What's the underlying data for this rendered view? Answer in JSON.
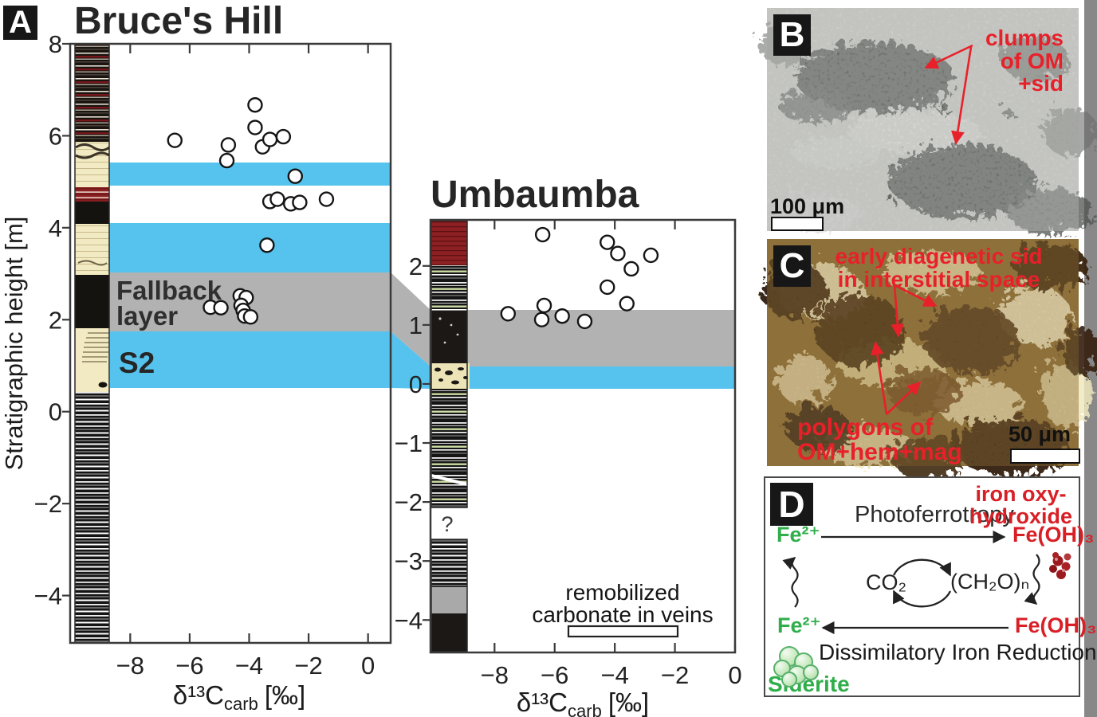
{
  "panel_a": {
    "label": "A",
    "ylabel": "Stratigraphic height [m]",
    "xlabel": {
      "main": "δ¹³C",
      "sub": "carb",
      "unit": "[‰]"
    },
    "bruces_hill": {
      "title": "Bruce's Hill",
      "x_ticks": [
        "−8",
        "−6",
        "−4",
        "−2",
        "0"
      ],
      "y_ticks": [
        "8",
        "6",
        "4",
        "2",
        "0",
        "−2",
        "−4"
      ],
      "fallback_line1": "Fallback",
      "fallback_line2": "layer",
      "s2": "S2"
    },
    "umbaumba": {
      "title": "Umbaumba",
      "x_ticks": [
        "−8",
        "−6",
        "−4",
        "−2",
        "0"
      ],
      "y_ticks": [
        "2",
        "1",
        "0",
        "−1",
        "−2",
        "−3",
        "−4"
      ],
      "question_mark": "?",
      "legend_line1": "remobilized",
      "legend_line2": "carbonate in veins"
    },
    "colors": {
      "band_blue": "#55c3ee",
      "band_gray": "#b2b2b2",
      "cream": "#f1eac2",
      "maroon": "#8c2023",
      "column_black": "#1b1815",
      "green_stripe": "#ccdca4"
    }
  },
  "chart_data": [
    {
      "type": "scatter",
      "title": "Bruce's Hill",
      "xlabel": "δ13C_carb [‰]",
      "ylabel": "Stratigraphic height [m]",
      "xlim": [
        -10.02,
        0.76
      ],
      "ylim": [
        -5.03,
        8
      ],
      "x_ticks": [
        -8,
        -6,
        -4,
        -2,
        0
      ],
      "y_ticks": [
        8,
        6,
        4,
        2,
        0,
        -2,
        -4
      ],
      "points": [
        [
          -3.8,
          6.67
        ],
        [
          -3.8,
          6.18
        ],
        [
          -6.5,
          5.9
        ],
        [
          -4.7,
          5.8
        ],
        [
          -4.75,
          5.46
        ],
        [
          -3.55,
          5.76
        ],
        [
          -3.3,
          5.92
        ],
        [
          -2.85,
          5.98
        ],
        [
          -2.45,
          5.12
        ],
        [
          -3.3,
          4.57
        ],
        [
          -3.05,
          4.62
        ],
        [
          -2.6,
          4.52
        ],
        [
          -2.3,
          4.55
        ],
        [
          -1.4,
          4.62
        ],
        [
          -3.4,
          3.62
        ],
        [
          -5.3,
          2.27
        ],
        [
          -4.95,
          2.26
        ],
        [
          -4.3,
          2.52
        ],
        [
          -4.1,
          2.48
        ],
        [
          -4.27,
          2.31
        ],
        [
          -4.2,
          2.2
        ],
        [
          -4.15,
          2.08
        ],
        [
          -3.95,
          2.06
        ]
      ],
      "bands": [
        {
          "name": "blue",
          "y_from": 5.42,
          "y_to": 4.92
        },
        {
          "name": "blue",
          "y_from": 4.1,
          "y_to": 3.03
        },
        {
          "name": "gray-fallback-layer",
          "y_from": 3.03,
          "y_to": 1.74
        },
        {
          "name": "blue-S2",
          "y_from": 1.74,
          "y_to": 0.52
        }
      ]
    },
    {
      "type": "scatter",
      "title": "Umbaumba",
      "xlabel": "δ13C_carb [‰]",
      "xlim": [
        -10.13,
        0
      ],
      "ylim": [
        -4.55,
        2.78
      ],
      "x_ticks": [
        -8,
        -6,
        -4,
        -2,
        0
      ],
      "y_ticks": [
        2,
        1,
        0,
        -1,
        -2,
        -3,
        -4
      ],
      "points": [
        [
          -6.4,
          2.53
        ],
        [
          -4.25,
          2.4
        ],
        [
          -3.9,
          2.21
        ],
        [
          -2.8,
          2.18
        ],
        [
          -3.45,
          1.95
        ],
        [
          -4.25,
          1.64
        ],
        [
          -3.6,
          1.36
        ],
        [
          -7.55,
          1.19
        ],
        [
          -6.35,
          1.33
        ],
        [
          -6.43,
          1.09
        ],
        [
          -5.75,
          1.15
        ],
        [
          -5.0,
          1.06
        ]
      ],
      "bands": [
        {
          "name": "gray-fallback-layer",
          "y_from": 1.25,
          "y_to": 0.3
        },
        {
          "name": "blue",
          "y_from": 0.3,
          "y_to": -0.08
        }
      ],
      "legend_box_range": {
        "x_from": -5.55,
        "x_to": -1.9,
        "y": -4.1
      }
    }
  ],
  "panel_b": {
    "label": "B",
    "annotation_lines": [
      "clumps",
      "of OM",
      "+sid"
    ],
    "scale_bar": "100 μm",
    "annotation_color": "#e8202a"
  },
  "panel_c": {
    "label": "C",
    "annotation_top": [
      "early diagenetic sid",
      "in interstitial space"
    ],
    "annotation_bottom": [
      "polygons of",
      "OM+hem+mag"
    ],
    "scale_bar": "50 μm",
    "annotation_color": "#e8202a"
  },
  "panel_d": {
    "label": "D",
    "top_process": "Photoferrotropy",
    "bottom_process": "Dissimilatory Iron Reduction",
    "iron_oxy_line1": "iron oxy-",
    "iron_oxy_line2": "hydroxide",
    "fe2_top": "Fe²⁺",
    "fe2_bottom": "Fe²⁺",
    "feoh3_top": "Fe(OH)₃",
    "feoh3_bottom": "Fe(OH)₃",
    "co2": "CO₂",
    "ch2o": "(CH₂O)ₙ",
    "siderite": "Siderite",
    "colors": {
      "green": "#2fae4a",
      "red": "#d81f26",
      "dark_red": "#9c1a1f"
    }
  }
}
